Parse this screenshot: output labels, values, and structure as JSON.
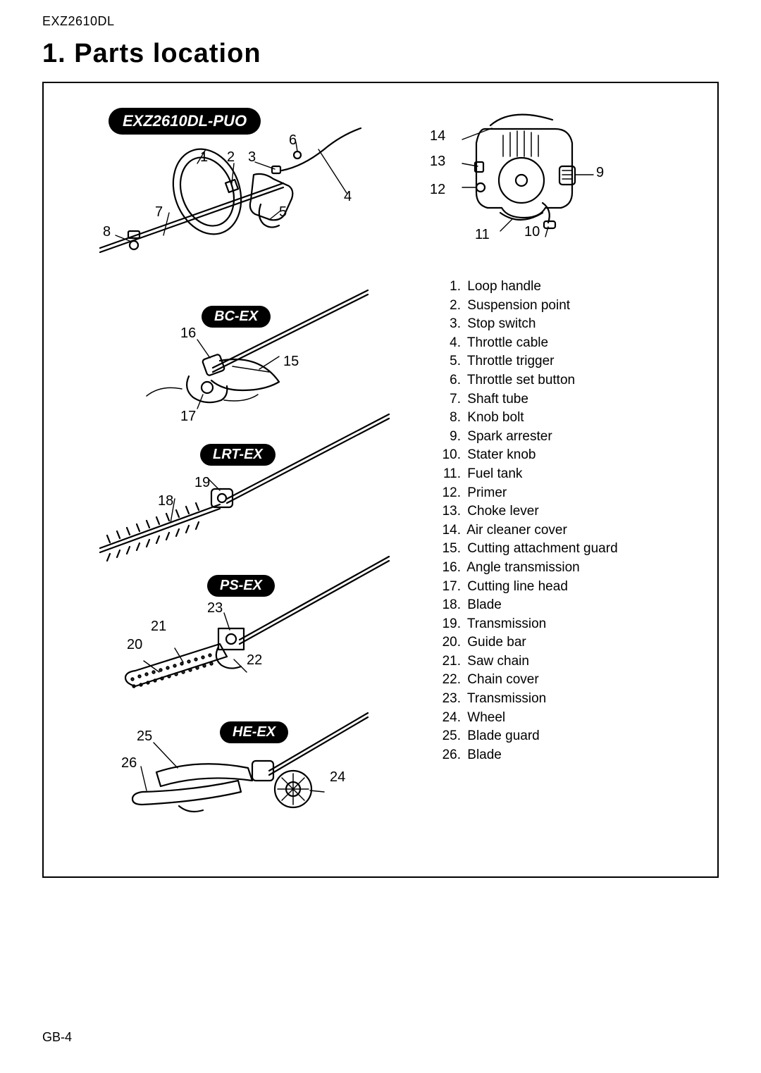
{
  "header_model": "EXZ2610DL",
  "section_title": "1. Parts location",
  "page_number": "GB-4",
  "pills": {
    "main": "EXZ2610DL-PUO",
    "bc": "BC-EX",
    "lrt": "LRT-EX",
    "ps": "PS-EX",
    "he": "HE-EX"
  },
  "callouts": {
    "c1": "1",
    "c2": "2",
    "c3": "3",
    "c4": "4",
    "c5": "5",
    "c6": "6",
    "c7": "7",
    "c8": "8",
    "c9": "9",
    "c10": "10",
    "c11": "11",
    "c12": "12",
    "c13": "13",
    "c14": "14",
    "c15": "15",
    "c16": "16",
    "c17": "17",
    "c18": "18",
    "c19": "19",
    "c20": "20",
    "c21": "21",
    "c22": "22",
    "c23": "23",
    "c24": "24",
    "c25": "25",
    "c26": "26"
  },
  "parts": [
    {
      "n": "1",
      "t": "Loop handle"
    },
    {
      "n": "2",
      "t": "Suspension point"
    },
    {
      "n": "3",
      "t": "Stop switch"
    },
    {
      "n": "4",
      "t": "Throttle cable"
    },
    {
      "n": "5",
      "t": "Throttle trigger"
    },
    {
      "n": "6",
      "t": "Throttle set button"
    },
    {
      "n": "7",
      "t": "Shaft tube"
    },
    {
      "n": "8",
      "t": "Knob bolt"
    },
    {
      "n": "9",
      "t": "Spark arrester"
    },
    {
      "n": "10",
      "t": "Stater knob"
    },
    {
      "n": "11",
      "t": "Fuel tank"
    },
    {
      "n": "12",
      "t": "Primer"
    },
    {
      "n": "13",
      "t": "Choke lever"
    },
    {
      "n": "14",
      "t": "Air cleaner cover"
    },
    {
      "n": "15",
      "t": "Cutting attachment guard"
    },
    {
      "n": "16",
      "t": "Angle transmission"
    },
    {
      "n": "17",
      "t": "Cutting line head"
    },
    {
      "n": "18",
      "t": "Blade"
    },
    {
      "n": "19",
      "t": "Transmission"
    },
    {
      "n": "20",
      "t": "Guide bar"
    },
    {
      "n": "21",
      "t": "Saw chain"
    },
    {
      "n": "22",
      "t": "Chain cover"
    },
    {
      "n": "23",
      "t": "Transmission"
    },
    {
      "n": "24",
      "t": "Wheel"
    },
    {
      "n": "25",
      "t": "Blade guard"
    },
    {
      "n": "26",
      "t": "Blade"
    }
  ],
  "style": {
    "page_bg": "#ffffff",
    "text_color": "#000000",
    "pill_bg": "#000000",
    "pill_fg": "#ffffff",
    "border_color": "#000000",
    "border_width": 2.5,
    "body_font_size": 19,
    "title_font_size": 38,
    "callout_font_size": 20
  }
}
